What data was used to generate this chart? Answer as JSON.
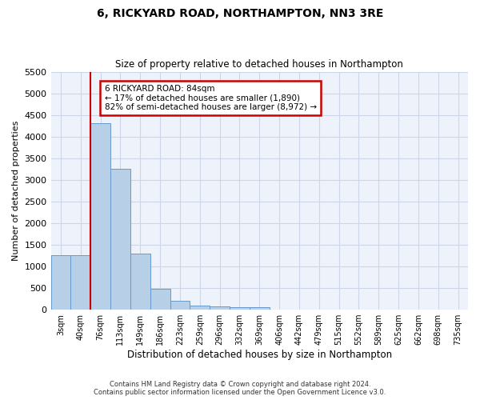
{
  "title": "6, RICKYARD ROAD, NORTHAMPTON, NN3 3RE",
  "subtitle": "Size of property relative to detached houses in Northampton",
  "xlabel": "Distribution of detached houses by size in Northampton",
  "ylabel": "Number of detached properties",
  "footer_line1": "Contains HM Land Registry data © Crown copyright and database right 2024.",
  "footer_line2": "Contains public sector information licensed under the Open Government Licence v3.0.",
  "bar_color": "#b8cfe8",
  "bar_edge_color": "#6699cc",
  "annotation_box_color": "#cc0000",
  "vline_color": "#cc0000",
  "grid_color": "#ccd6e8",
  "background_color": "#eef2fa",
  "categories": [
    "3sqm",
    "40sqm",
    "76sqm",
    "113sqm",
    "149sqm",
    "186sqm",
    "223sqm",
    "259sqm",
    "296sqm",
    "332sqm",
    "369sqm",
    "406sqm",
    "442sqm",
    "479sqm",
    "515sqm",
    "552sqm",
    "589sqm",
    "625sqm",
    "662sqm",
    "698sqm",
    "735sqm"
  ],
  "values": [
    1250,
    1250,
    4300,
    3250,
    1300,
    475,
    200,
    100,
    70,
    50,
    50,
    0,
    0,
    0,
    0,
    0,
    0,
    0,
    0,
    0,
    0
  ],
  "ylim": [
    0,
    5500
  ],
  "yticks": [
    0,
    500,
    1000,
    1500,
    2000,
    2500,
    3000,
    3500,
    4000,
    4500,
    5000,
    5500
  ],
  "vline_x": 2.0,
  "annotation_text_line1": "6 RICKYARD ROAD: 84sqm",
  "annotation_text_line2": "← 17% of detached houses are smaller (1,890)",
  "annotation_text_line3": "82% of semi-detached houses are larger (8,972) →"
}
